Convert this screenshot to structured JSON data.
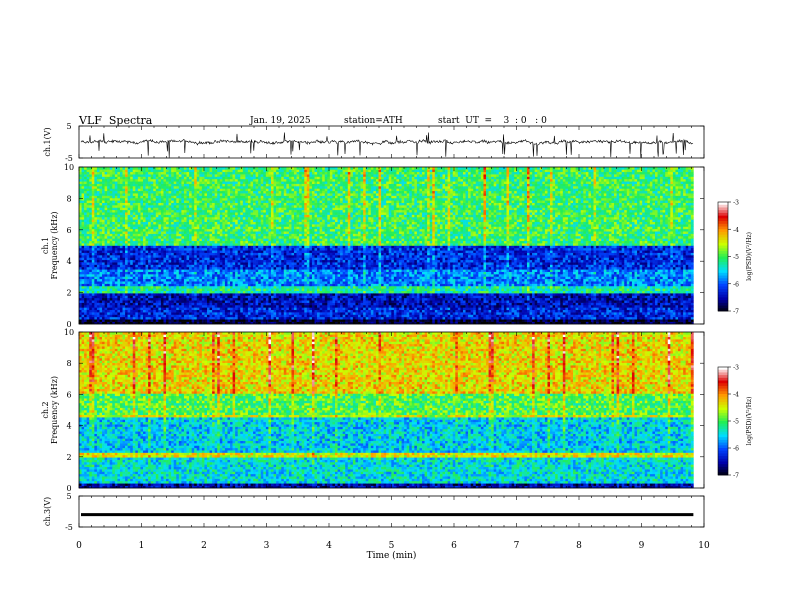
{
  "header": {
    "title": "VLF  Spectra",
    "date": "Jan. 19, 2025",
    "station": "station=ATH",
    "start_ut": "start  UT  =    3  : 0   : 0"
  },
  "chart_data": [
    {
      "type": "line",
      "panel": "ch1-waveform",
      "ylabel": "ch.1(V)",
      "ylim": [
        -5,
        5
      ],
      "yticks": [
        "5",
        "-5"
      ],
      "xlim": [
        0,
        10
      ],
      "series": [
        {
          "values_desc": "noisy waveform centered near 0 V with spikes",
          "level": 0
        }
      ]
    },
    {
      "type": "heatmap",
      "panel": "ch1-spectrogram",
      "ylabel": "ch.1\nFrequency (kHz)",
      "ylabel_lines": [
        "ch.1",
        "Frequency (kHz)"
      ],
      "ylim": [
        0,
        10
      ],
      "yticks": [
        "0",
        "2",
        "4",
        "6",
        "8",
        "10"
      ],
      "xlim": [
        0,
        10
      ],
      "data_end_min": 9.83,
      "colorbar": {
        "label": "log(PSD)(V²/Hz)",
        "ticks": [
          "-3",
          "-4",
          "-5",
          "-6",
          "-7"
        ],
        "range": [
          -7,
          -3
        ]
      },
      "bands": [
        {
          "from": 0,
          "to": 0.3,
          "level": -6.9
        },
        {
          "from": 0.3,
          "to": 1.0,
          "level": -6.2
        },
        {
          "from": 1.0,
          "to": 2.0,
          "level": -6.4
        },
        {
          "from": 2.0,
          "to": 2.4,
          "level": -5.2
        },
        {
          "from": 2.4,
          "to": 3.5,
          "level": -5.8
        },
        {
          "from": 3.5,
          "to": 5.0,
          "level": -6.2
        },
        {
          "from": 5.0,
          "to": 10.0,
          "level": -5.0
        }
      ]
    },
    {
      "type": "heatmap",
      "panel": "ch2-spectrogram",
      "ylabel": "ch.2\nFrequency (kHz)",
      "ylabel_lines": [
        "ch.2",
        "Frequency (kHz)"
      ],
      "ylim": [
        0,
        10
      ],
      "yticks": [
        "0",
        "2",
        "4",
        "6",
        "8",
        "10"
      ],
      "xlim": [
        0,
        10
      ],
      "data_end_min": 9.83,
      "colorbar": {
        "label": "log(PSD)(V²/Hz)",
        "ticks": [
          "-3",
          "-4",
          "-5",
          "-6",
          "-7"
        ],
        "range": [
          -7,
          -3
        ]
      },
      "bands": [
        {
          "from": 0,
          "to": 0.3,
          "level": -6.5
        },
        {
          "from": 0.3,
          "to": 2.0,
          "level": -5.4
        },
        {
          "from": 2.0,
          "to": 2.3,
          "level": -4.4
        },
        {
          "from": 2.3,
          "to": 4.5,
          "level": -5.5
        },
        {
          "from": 4.5,
          "to": 4.7,
          "level": -4.5
        },
        {
          "from": 4.7,
          "to": 6.0,
          "level": -4.9
        },
        {
          "from": 6.0,
          "to": 10.0,
          "level": -4.3
        }
      ]
    },
    {
      "type": "line",
      "panel": "ch3-waveform",
      "ylabel": "ch.3(V)",
      "ylim": [
        -5,
        5
      ],
      "yticks": [
        "5",
        "-5"
      ],
      "xlim": [
        0,
        10
      ],
      "series": [
        {
          "values_desc": "thick flat trace near -1 V",
          "level": -1
        }
      ]
    }
  ],
  "xaxis": {
    "label": "Time  (min)",
    "ticks": [
      "0",
      "1",
      "2",
      "3",
      "4",
      "5",
      "6",
      "7",
      "8",
      "9",
      "10"
    ]
  },
  "colors": {
    "cmap": [
      "#000000",
      "#0000aa",
      "#0044ff",
      "#00ddff",
      "#22ee55",
      "#ccff00",
      "#ff9900",
      "#dd0000",
      "#ffffff"
    ]
  }
}
